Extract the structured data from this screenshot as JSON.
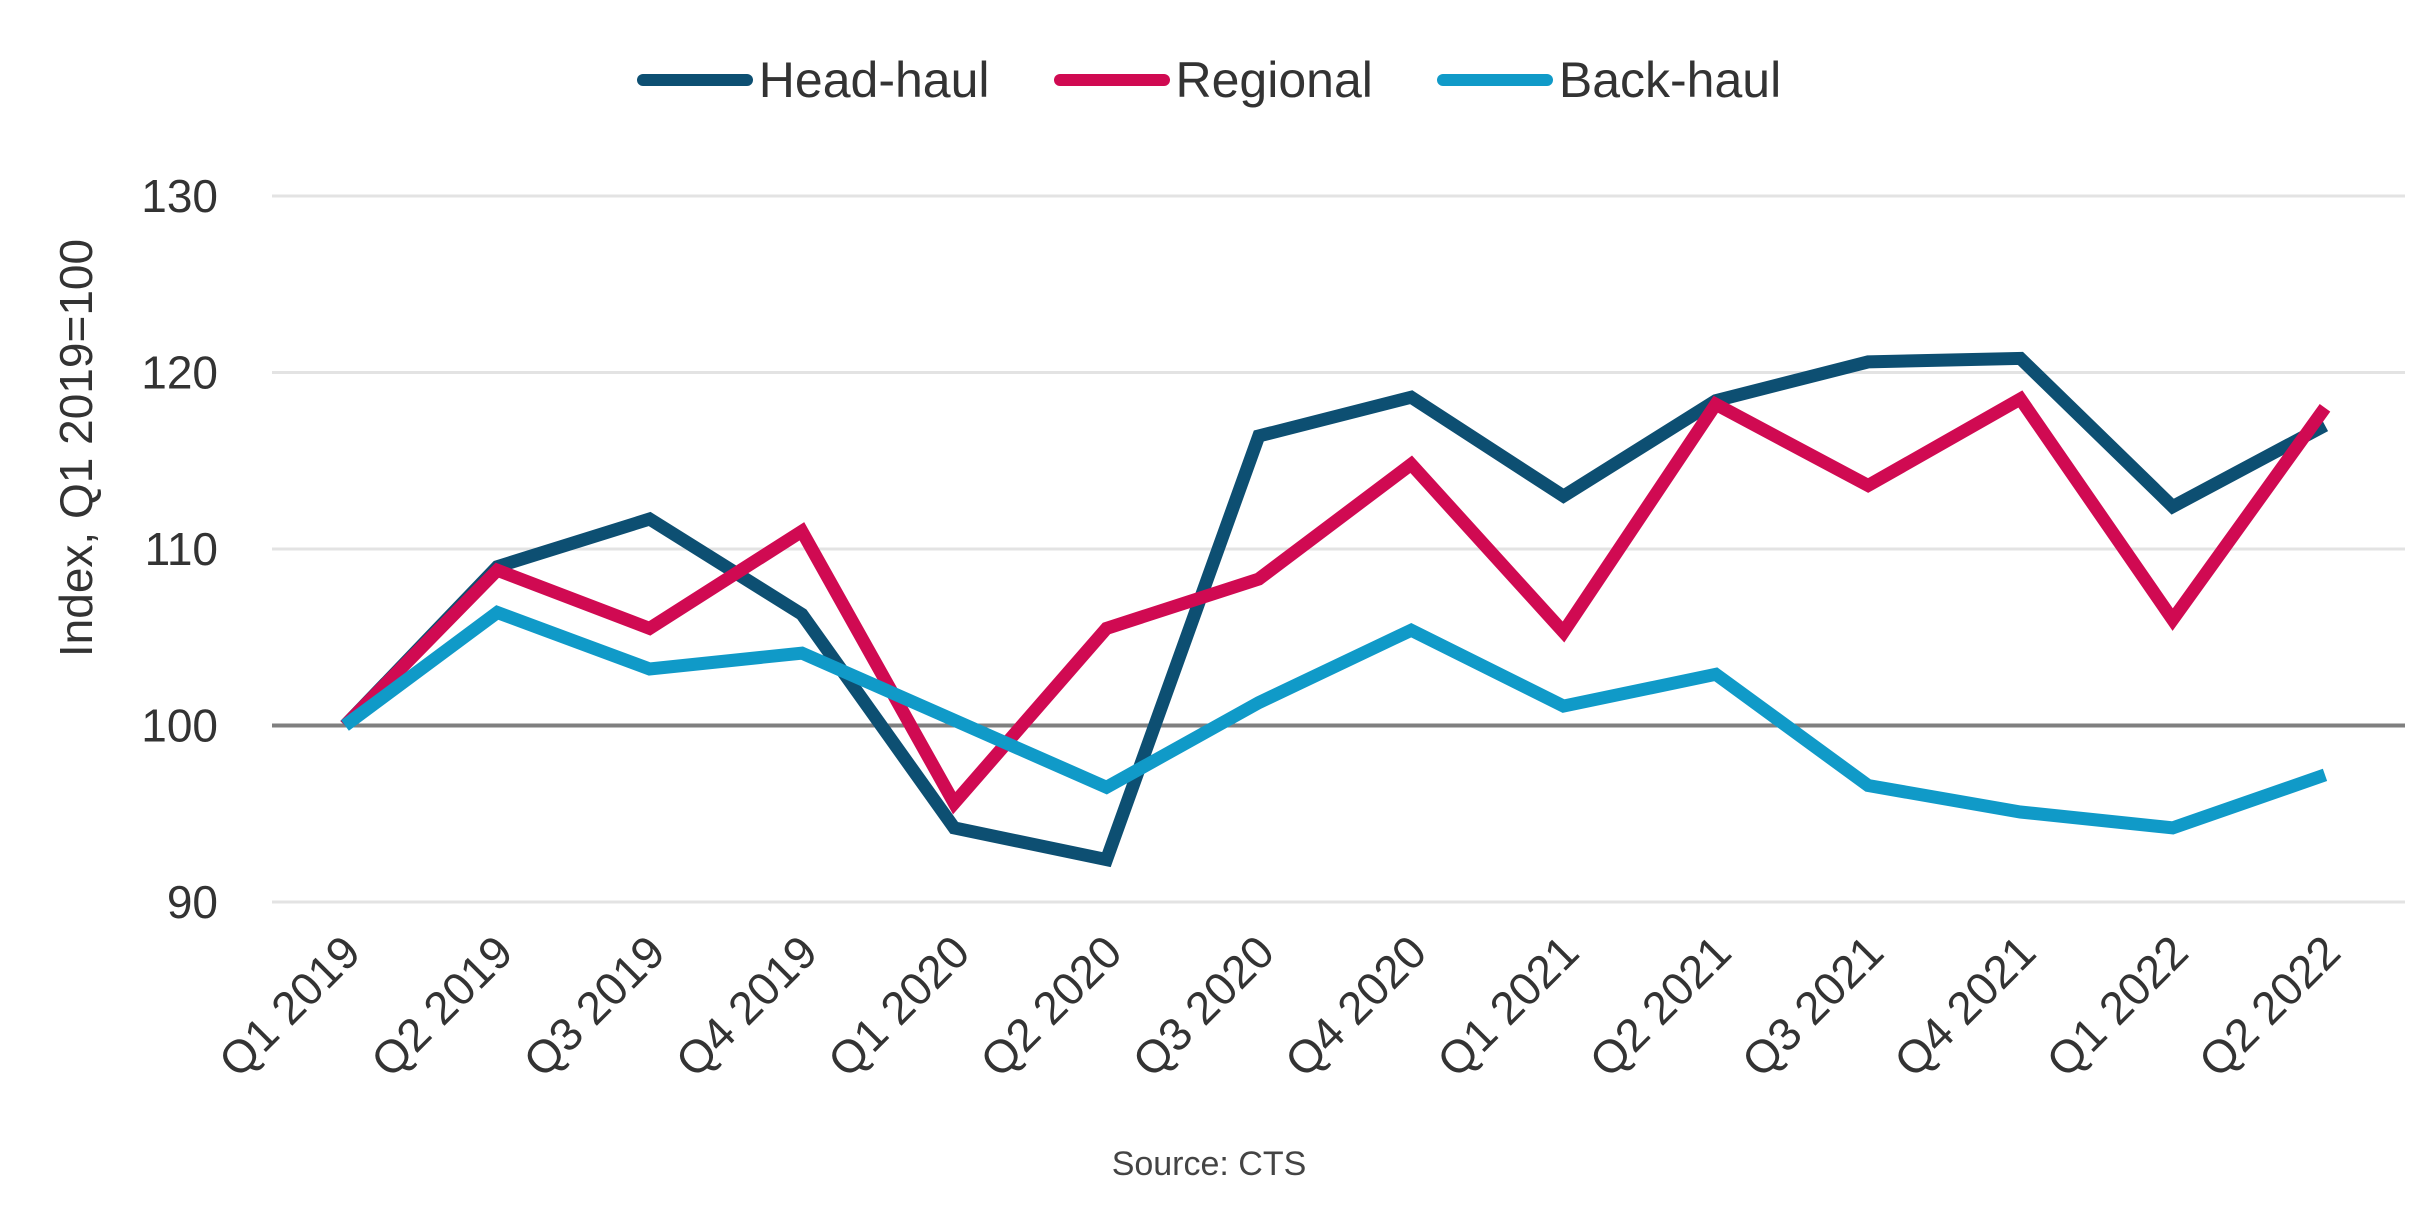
{
  "chart_data": {
    "type": "line",
    "ylabel": "Index, Q1 2019=100",
    "xlabel": "",
    "source": "Source: CTS",
    "ylim": [
      90,
      130
    ],
    "yticks": [
      90,
      100,
      110,
      120,
      130
    ],
    "reference_line": 100,
    "grid": true,
    "legend_position": "top-center",
    "categories": [
      "Q1 2019",
      "Q2 2019",
      "Q3 2019",
      "Q4 2019",
      "Q1 2020",
      "Q2 2020",
      "Q3 2020",
      "Q4 2020",
      "Q1 2021",
      "Q2 2021",
      "Q3 2021",
      "Q4 2021",
      "Q1 2022",
      "Q2 2022"
    ],
    "series": [
      {
        "name": "Head-haul",
        "color": "#0d4f72",
        "values": [
          100,
          109,
          111.7,
          106.3,
          94.2,
          92.4,
          116.4,
          118.6,
          113,
          118.4,
          120.6,
          120.8,
          112.4,
          117
        ]
      },
      {
        "name": "Regional",
        "color": "#d00a52",
        "values": [
          100,
          108.8,
          105.5,
          111,
          95.6,
          105.5,
          108.3,
          114.8,
          105.3,
          118.2,
          113.6,
          118.5,
          106,
          118
        ]
      },
      {
        "name": "Back-haul",
        "color": "#109ac8",
        "values": [
          100,
          106.4,
          103.2,
          104.1,
          100.3,
          96.5,
          101.3,
          105.4,
          101.1,
          102.9,
          96.6,
          95.1,
          94.2,
          97.2
        ]
      }
    ]
  }
}
